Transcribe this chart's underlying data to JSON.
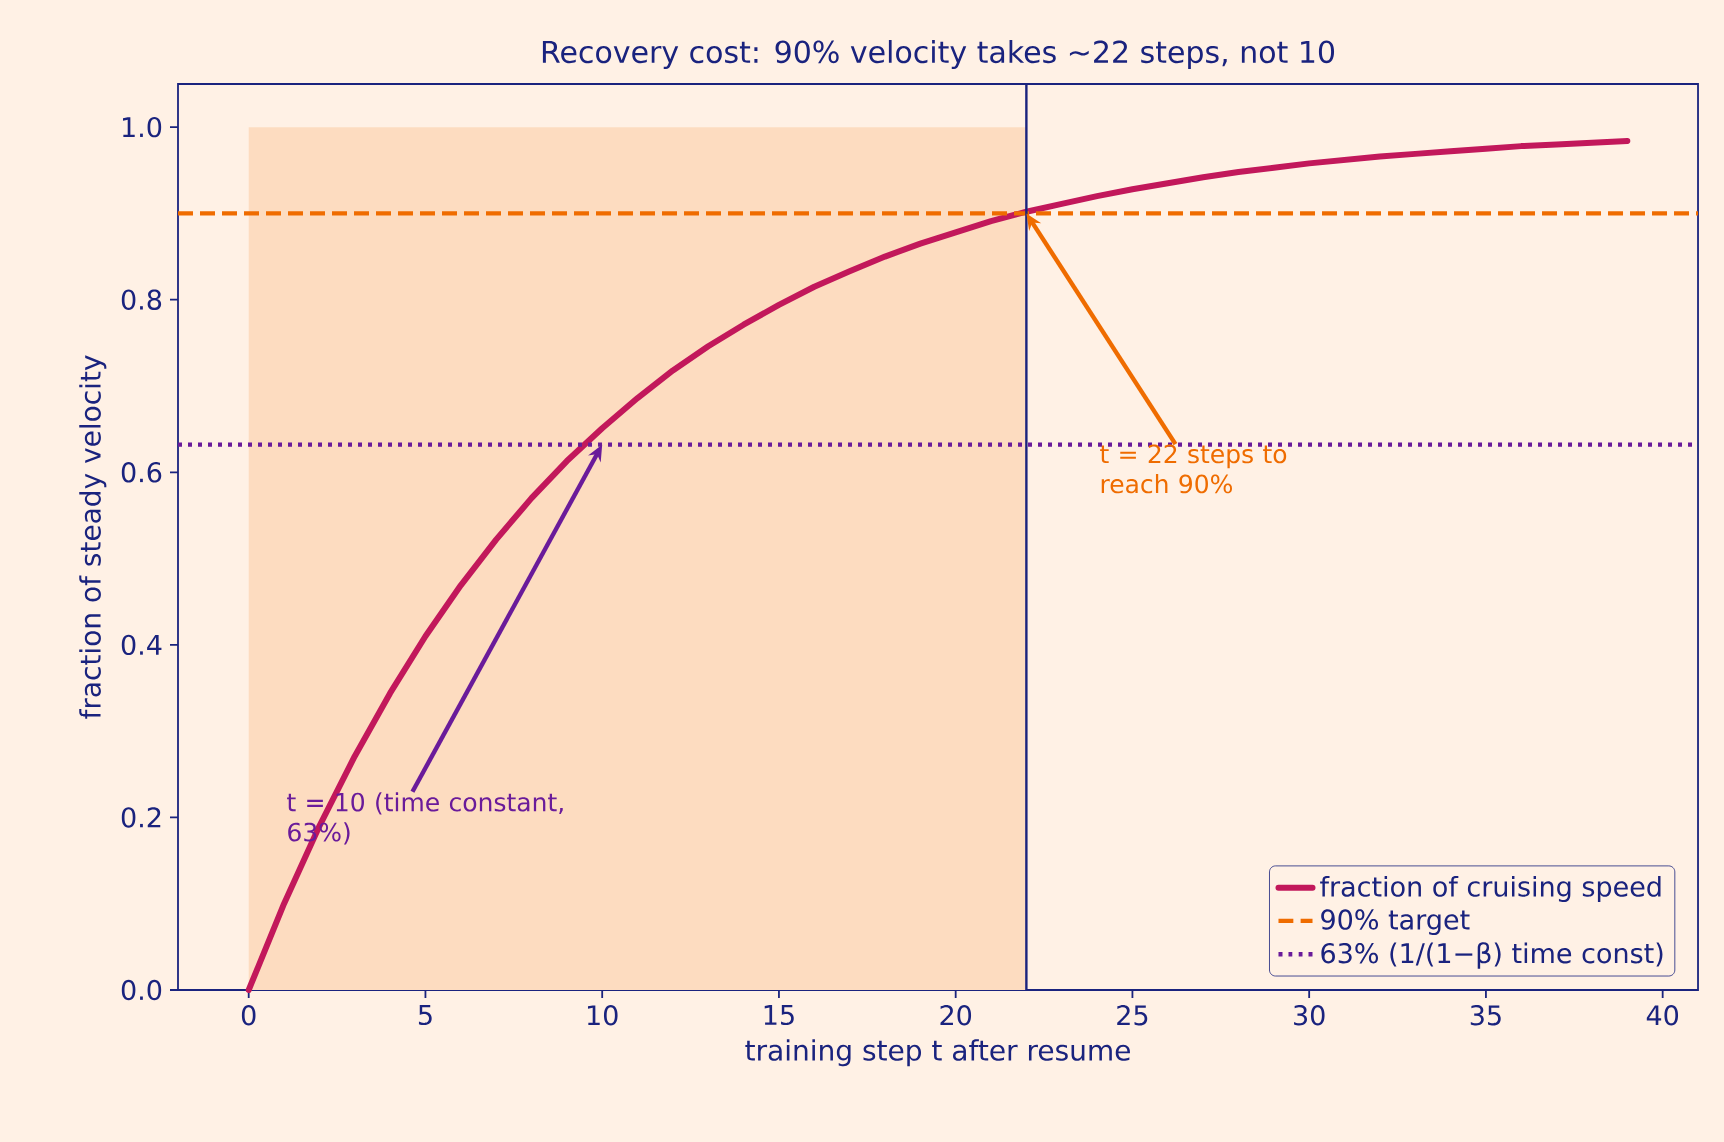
{
  "chart_data": {
    "type": "line",
    "title": "Recovery cost: 90% velocity takes ~22 steps, not 10",
    "xlabel": "training step t after resume",
    "ylabel": "fraction of steady velocity",
    "series": [
      {
        "type": "area",
        "color": "#fddcc0",
        "x": [
          0,
          22
        ],
        "values": [
          1.0,
          1.0
        ]
      },
      {
        "name": "fraction of cruising speed",
        "color": "#c2185b",
        "x": [
          0,
          1,
          2,
          3,
          4,
          5,
          6,
          7,
          8,
          9,
          10,
          11,
          12,
          13,
          14,
          15,
          16,
          17,
          18,
          19,
          20,
          21,
          22,
          23,
          24,
          25,
          26,
          27,
          28,
          29,
          30,
          31,
          32,
          33,
          34,
          35,
          36,
          37,
          38,
          39
        ],
        "values": [
          0,
          0.1,
          0.19,
          0.271,
          0.344,
          0.41,
          0.469,
          0.522,
          0.57,
          0.613,
          0.651,
          0.686,
          0.718,
          0.746,
          0.771,
          0.794,
          0.815,
          0.833,
          0.85,
          0.865,
          0.878,
          0.891,
          0.902,
          0.911,
          0.92,
          0.928,
          0.935,
          0.942,
          0.948,
          0.953,
          0.958,
          0.962,
          0.966,
          0.969,
          0.972,
          0.975,
          0.978,
          0.98,
          0.982,
          0.984
        ]
      }
    ],
    "ref_lines": [
      {
        "axis": "y",
        "value": 0.9,
        "label": "90% target",
        "color": "#ef6c00",
        "line_style": "dashed"
      },
      {
        "axis": "y",
        "value": 0.632,
        "label": "63% (1/(1−β) time const)",
        "color": "#6a1b9a",
        "line_style": "dotted"
      },
      {
        "axis": "x",
        "value": 22,
        "color": "#1a237e",
        "line_style": "solid"
      }
    ],
    "annotations": [
      {
        "text": "t = 22 steps to reach 90%",
        "x": 22,
        "y": 0.9
      },
      {
        "text": "t = 10 (time constant, 63%)",
        "x": 10,
        "y": 0.632
      }
    ],
    "xlim": [
      -2,
      41
    ],
    "ylim": [
      0,
      1.05
    ],
    "xticks": [
      0,
      5,
      10,
      15,
      20,
      25,
      30,
      35,
      40
    ],
    "yticks": [
      {
        "value": 0,
        "label": "0.0"
      },
      {
        "value": 0.2,
        "label": "0.2"
      },
      {
        "value": 0.4,
        "label": "0.4"
      },
      {
        "value": 0.6,
        "label": "0.6"
      },
      {
        "value": 0.8,
        "label": "0.8"
      },
      {
        "value": 1.0,
        "label": "1.0"
      }
    ],
    "grid": false,
    "legend": "bottom right",
    "marker": "none",
    "line_style": "solid"
  }
}
